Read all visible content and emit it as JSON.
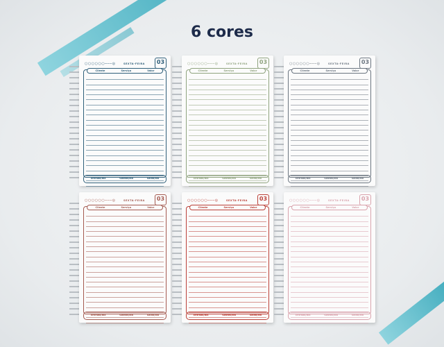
{
  "title": "6 cores",
  "planner": {
    "day_label": "SEXTA-FEIRA",
    "date": "03",
    "columns": [
      "Cliente",
      "Serviço",
      "Valor"
    ],
    "footer": [
      "Entrada/dia",
      "Gastos/dia",
      "Saldo/dia"
    ]
  },
  "variants": [
    {
      "color_name": "blue",
      "color": "#2f5f7a"
    },
    {
      "color_name": "green",
      "color": "#8fa37e"
    },
    {
      "color_name": "gray",
      "color": "#6b7580"
    },
    {
      "color_name": "brown",
      "color": "#a45a50"
    },
    {
      "color_name": "red",
      "color": "#bb4038"
    },
    {
      "color_name": "pink",
      "color": "#d9a3ad"
    }
  ]
}
